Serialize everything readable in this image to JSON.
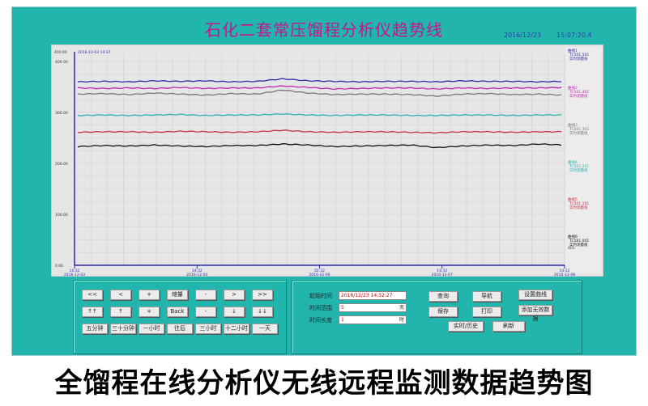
{
  "header": {
    "title": "石化二套常压馏程分析仪趋势线",
    "date": "2016/12/23",
    "time": "15:07:20.4"
  },
  "chart_data": {
    "type": "line",
    "cursor_label": "2016-12-03 14:37",
    "ylim": [
      0,
      400
    ],
    "y_ticks": [
      "0.00",
      "100.00",
      "200.00",
      "300.00",
      "400.00"
    ],
    "y_top_label": "400.00",
    "x_ticks": [
      {
        "time": "14:32",
        "date": "2016-12-03"
      },
      {
        "time": "14:32",
        "date": "2016-12-04"
      },
      {
        "time": "02:32",
        "date": "2016-12-06"
      },
      {
        "time": "14:32",
        "date": "2016-12-07"
      },
      {
        "time": "14:32",
        "date": "2016-12-08"
      }
    ],
    "grid": true,
    "series": [
      {
        "name": "曲线1",
        "tag": "TC501.501",
        "desc": "实时测量值",
        "color": "#2a2aa8",
        "values": [
          360,
          361,
          360,
          362,
          361,
          362,
          360,
          361,
          366,
          362,
          361,
          360,
          361,
          361,
          360,
          362,
          361,
          361,
          360,
          361
        ]
      },
      {
        "name": "曲线2",
        "tag": "TC501.401",
        "desc": "实时测量值",
        "color": "#c02ab0",
        "values": [
          348,
          347,
          348,
          347,
          349,
          347,
          348,
          348,
          352,
          349,
          346,
          347,
          348,
          348,
          346,
          348,
          347,
          348,
          348,
          349
        ]
      },
      {
        "name": "曲线3",
        "tag": "TC501.301",
        "desc": "实时测量值",
        "color": "#777777",
        "values": [
          336,
          337,
          335,
          338,
          336,
          334,
          337,
          336,
          344,
          338,
          335,
          336,
          336,
          335,
          332,
          336,
          337,
          335,
          336,
          334
        ]
      },
      {
        "name": "曲线4",
        "tag": "TC501.201",
        "desc": "实时测量值",
        "color": "#2ab0b0",
        "values": [
          294,
          295,
          294,
          295,
          296,
          294,
          295,
          295,
          297,
          295,
          294,
          295,
          295,
          294,
          294,
          295,
          295,
          294,
          295,
          295
        ]
      },
      {
        "name": "曲线5",
        "tag": "TC501.101",
        "desc": "实时测量值",
        "color": "#c83040",
        "values": [
          261,
          262,
          262,
          261,
          263,
          262,
          261,
          262,
          265,
          262,
          261,
          262,
          262,
          261,
          260,
          262,
          262,
          261,
          262,
          262
        ]
      },
      {
        "name": "曲线6",
        "tag": "TC501.001",
        "desc": "实时测量值",
        "color": "#111111",
        "values": [
          233,
          235,
          234,
          236,
          234,
          233,
          235,
          235,
          238,
          236,
          233,
          234,
          235,
          236,
          231,
          234,
          236,
          235,
          238,
          236
        ]
      }
    ],
    "legend_placement": "right",
    "legend_extra": "401"
  },
  "nav": {
    "row1": [
      "<<",
      "<",
      "+",
      "缩量",
      "-",
      ">",
      ">>"
    ],
    "row2": [
      "↑↑",
      "↑",
      "+",
      "Back",
      "-",
      "↓",
      "↓↓"
    ],
    "row3": [
      "五分钟",
      "三十分钟",
      "一小时",
      "往后",
      "三小时",
      "十二小时",
      "一天"
    ]
  },
  "query": {
    "start_label": "起始时间",
    "start_value": "2016/12/23",
    "start_time": "14:32:27",
    "range_label": "时间范围",
    "range_value": "5",
    "range_unit": "天",
    "length_label": "时间长度",
    "length_value": "1",
    "length_unit": "时",
    "buttons": [
      "查询",
      "导航",
      "设置曲线",
      "保存",
      "打印",
      "添加无效数据",
      "实时/历史",
      "刷新"
    ]
  },
  "caption": "全馏程在线分析仪无线远程监测数据趋势图"
}
